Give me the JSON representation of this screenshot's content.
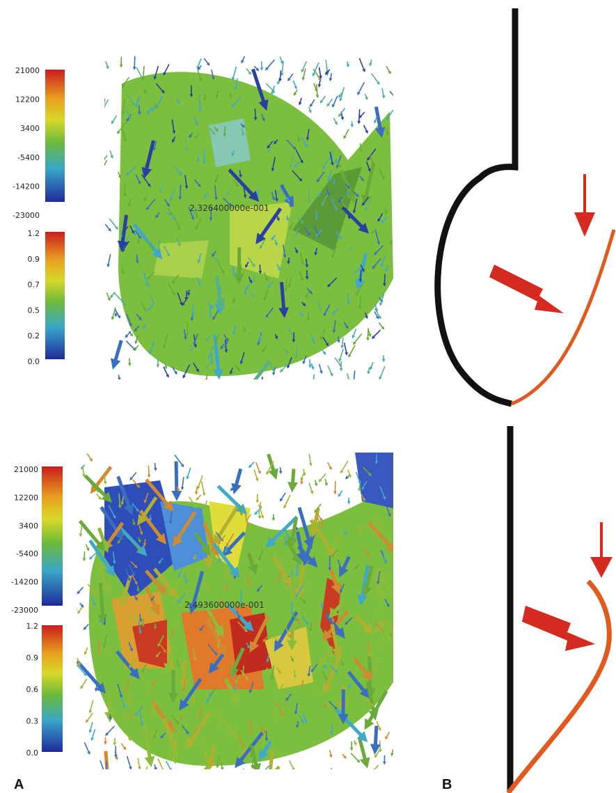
{
  "panels": [
    {
      "stress_scale": [
        "21000",
        "12200",
        "3400",
        "-5400",
        "-14200",
        "-23000"
      ],
      "ratio_scale": [
        "1.2",
        "0.9",
        "0.7",
        "0.5",
        "0.2",
        "0.0"
      ],
      "annotation": "2.326400000e-001"
    },
    {
      "stress_scale": [
        "21000",
        "12200",
        "3400",
        "-5400",
        "-14200",
        "-23000"
      ],
      "ratio_scale": [
        "1.2",
        "0.9",
        "0.6",
        "0.3",
        "0.0"
      ],
      "annotation": "2.493600000e-001"
    }
  ],
  "labels": {
    "a": "A",
    "b": "B"
  }
}
